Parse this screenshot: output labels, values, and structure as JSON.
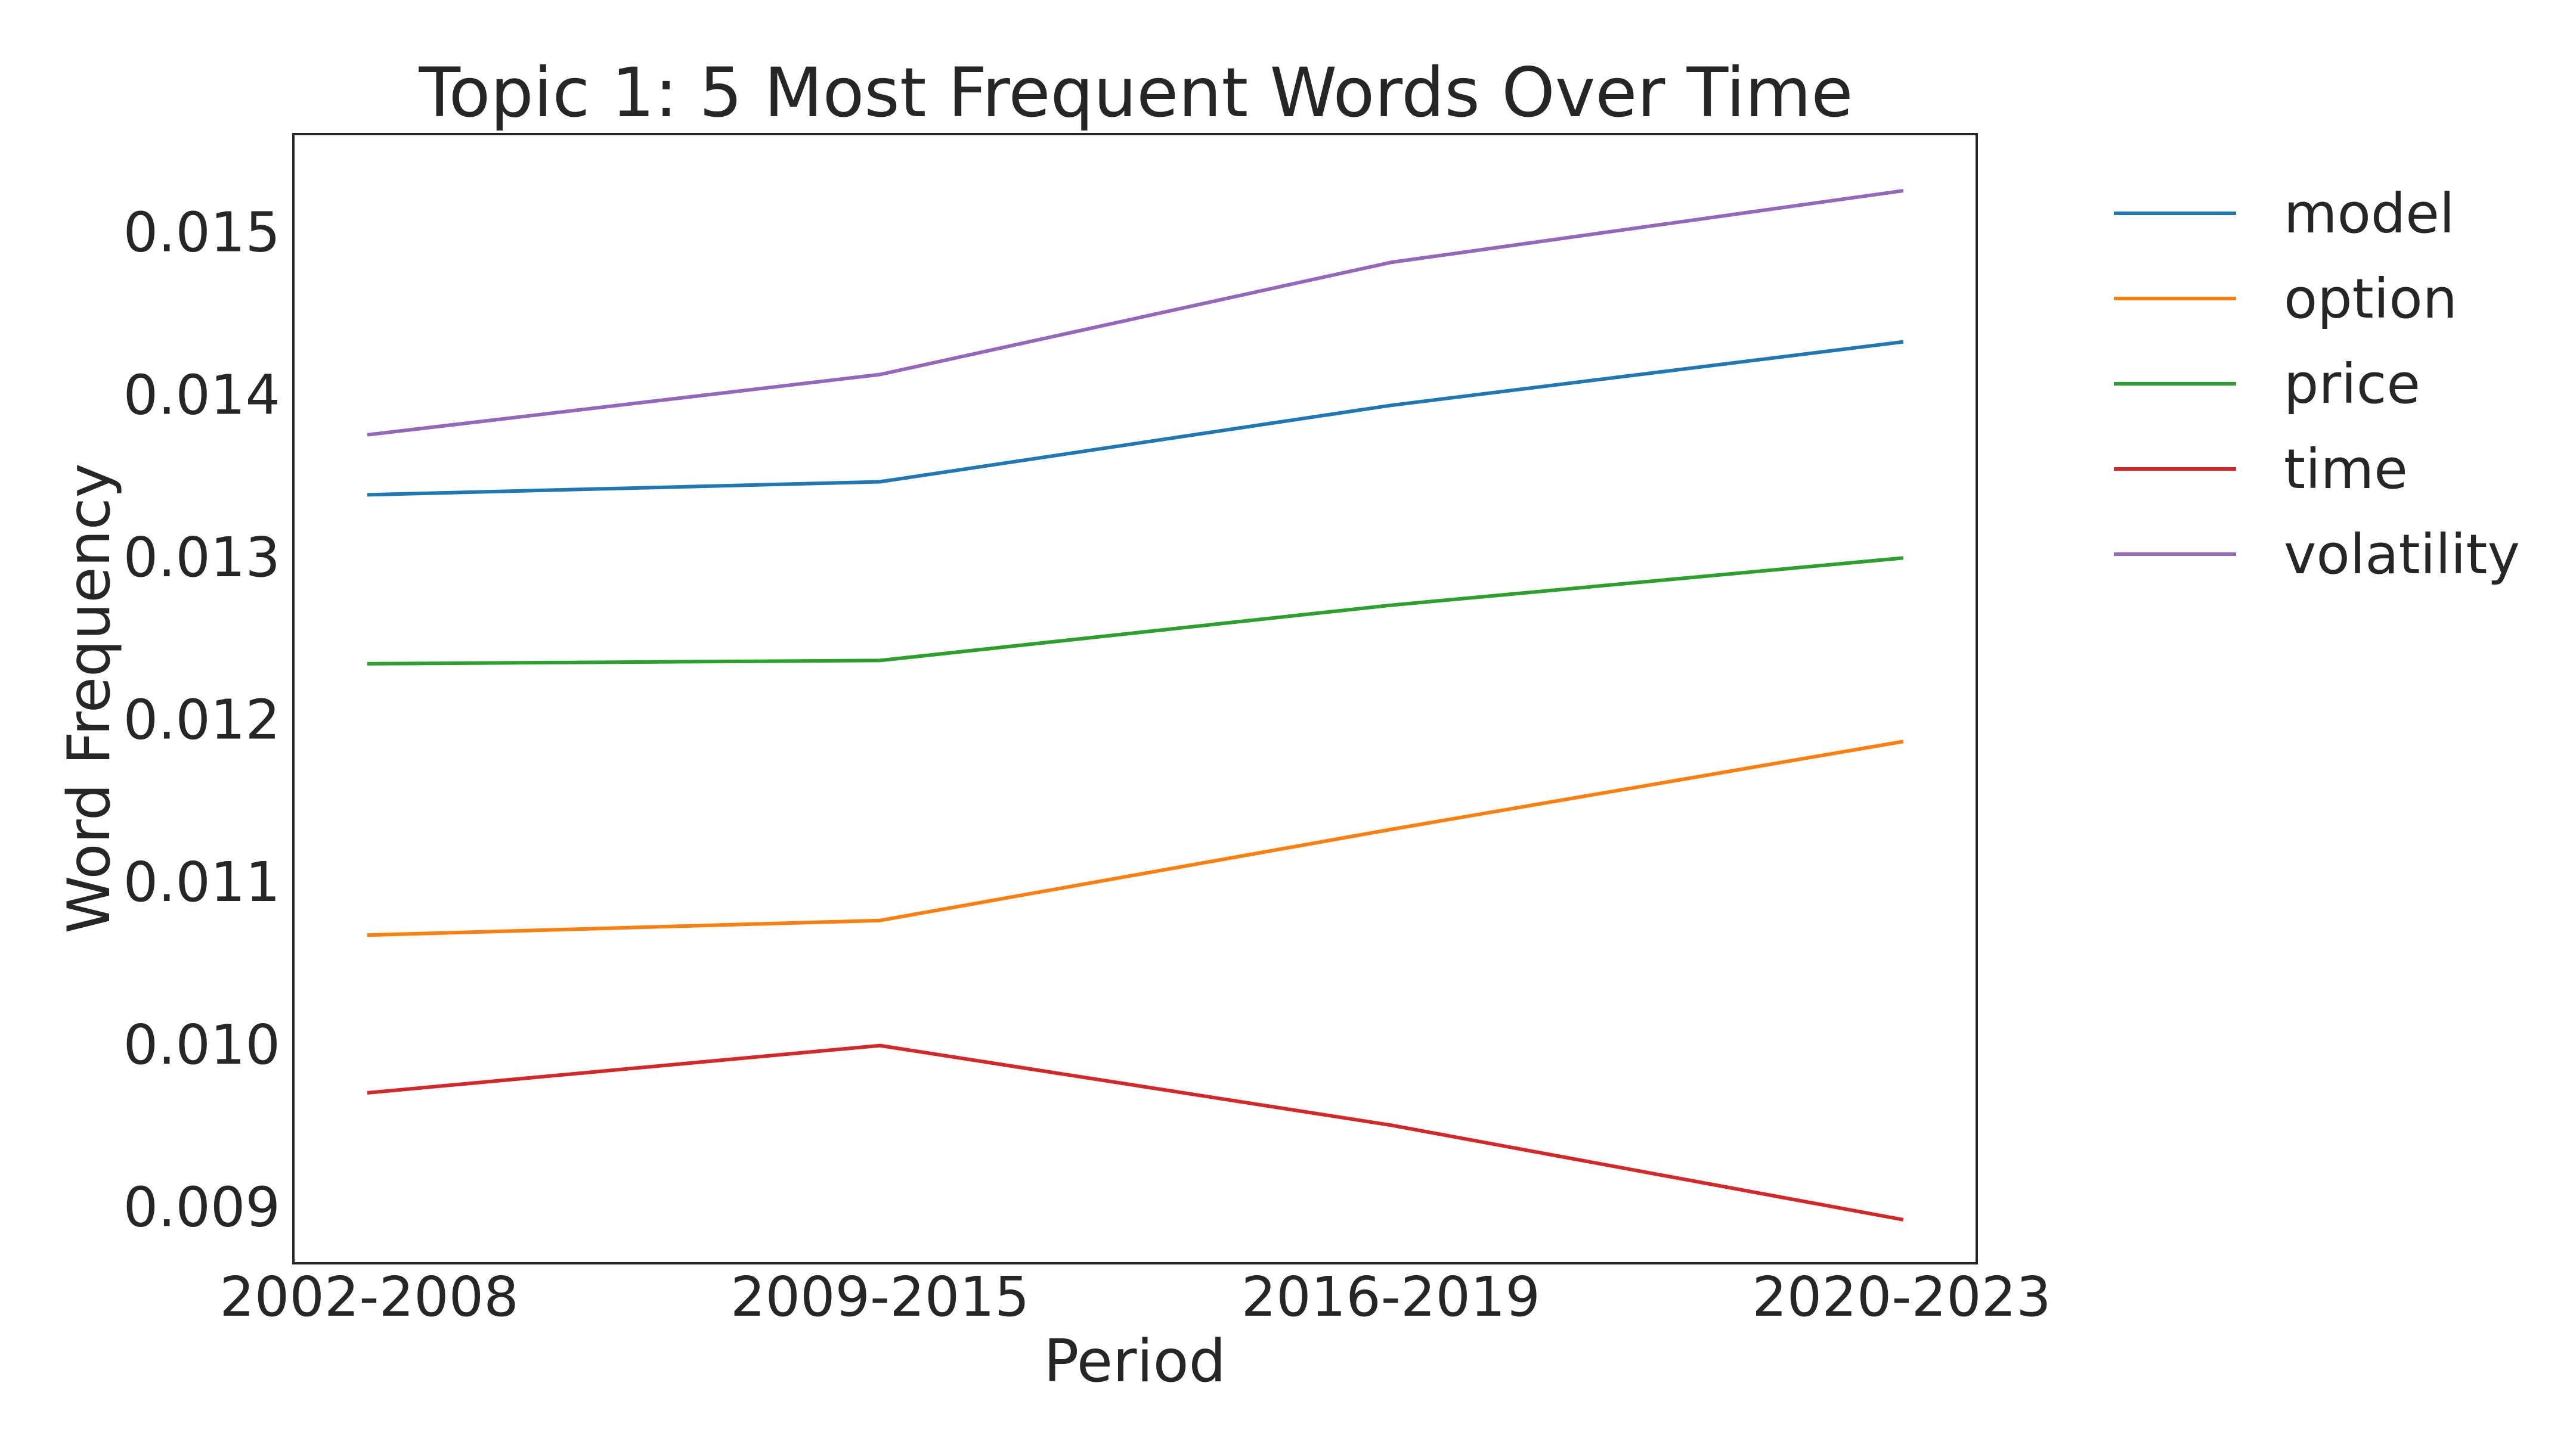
{
  "chart_data": {
    "type": "line",
    "title": "Topic 1: 5 Most Frequent Words Over Time",
    "xlabel": "Period",
    "ylabel": "Word Frequency",
    "categories": [
      "2002-2008",
      "2009-2015",
      "2016-2019",
      "2020-2023"
    ],
    "y_ticks": [
      0.009,
      0.01,
      0.011,
      0.012,
      0.013,
      0.014,
      0.015
    ],
    "y_tick_labels": [
      "0.009",
      "0.010",
      "0.011",
      "0.012",
      "0.013",
      "0.014",
      "0.015"
    ],
    "ylim": [
      0.00865,
      0.0156
    ],
    "grid": false,
    "legend_placement": "outside-top-right",
    "series": [
      {
        "name": "model",
        "color": "#1f77b4",
        "values": [
          0.01338,
          0.01346,
          0.01393,
          0.01432
        ]
      },
      {
        "name": "option",
        "color": "#ff7f0e",
        "values": [
          0.01067,
          0.01076,
          0.01132,
          0.01186
        ]
      },
      {
        "name": "price",
        "color": "#2ca02c",
        "values": [
          0.01234,
          0.01236,
          0.0127,
          0.01299
        ]
      },
      {
        "name": "time",
        "color": "#d62728",
        "values": [
          0.0097,
          0.00999,
          0.0095,
          0.00892
        ]
      },
      {
        "name": "volatility",
        "color": "#9467bd",
        "values": [
          0.01375,
          0.01412,
          0.01481,
          0.01525
        ]
      }
    ]
  }
}
